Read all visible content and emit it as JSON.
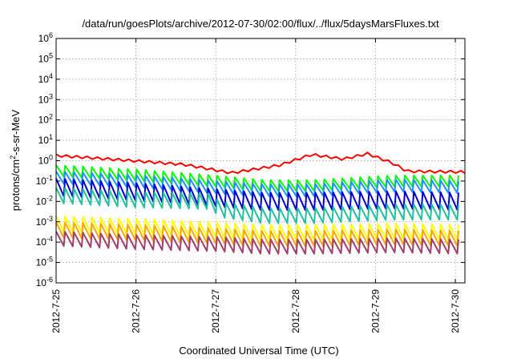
{
  "chart_data": {
    "type": "line",
    "title": "/data/run/goesPlots/archive/2012-07-30/02:00/flux/../flux/5daysMarsFluxes.txt",
    "xlabel": "Coordinated Universal Time (UTC)",
    "ylabel": "protons/cm²-s-sr-MeV",
    "ylabel_parts": {
      "base": "protons/cm",
      "sup": "2",
      "rest": "-s-sr-MeV"
    },
    "yscale": "log",
    "ylim_exp": [
      -6,
      6
    ],
    "yticks": [
      {
        "base": "10",
        "exp": "-6"
      },
      {
        "base": "10",
        "exp": "-5"
      },
      {
        "base": "10",
        "exp": "-4"
      },
      {
        "base": "10",
        "exp": "-3"
      },
      {
        "base": "10",
        "exp": "-2"
      },
      {
        "base": "10",
        "exp": "-1"
      },
      {
        "base": "10",
        "exp": "0"
      },
      {
        "base": "10",
        "exp": "1"
      },
      {
        "base": "10",
        "exp": "2"
      },
      {
        "base": "10",
        "exp": "3"
      },
      {
        "base": "10",
        "exp": "4"
      },
      {
        "base": "10",
        "exp": "5"
      },
      {
        "base": "10",
        "exp": "6"
      }
    ],
    "xlim_days": [
      0,
      5.12
    ],
    "xticks": [
      {
        "day": 0,
        "label": "2012-7-25"
      },
      {
        "day": 1,
        "label": "2012-7-26"
      },
      {
        "day": 2,
        "label": "2012-7-27"
      },
      {
        "day": 3,
        "label": "2012-7-28"
      },
      {
        "day": 4,
        "label": "2012-7-29"
      },
      {
        "day": 5,
        "label": "2012-7-30"
      }
    ],
    "grid": true,
    "legend": "none",
    "series": [
      {
        "color": "#ff0000",
        "sawtooth": false,
        "amplitude_decades": 0.12,
        "trend": [
          [
            0,
            1.8
          ],
          [
            0.8,
            1.1
          ],
          [
            1.6,
            0.65
          ],
          [
            2.2,
            0.25
          ],
          [
            2.6,
            0.45
          ],
          [
            2.8,
            0.6
          ],
          [
            3.2,
            2.0
          ],
          [
            3.6,
            1.2
          ],
          [
            3.9,
            2.2
          ],
          [
            4.2,
            0.8
          ],
          [
            4.4,
            0.3
          ],
          [
            5.12,
            0.28
          ]
        ]
      },
      {
        "color": "#00ff00",
        "sawtooth": true,
        "amplitude_decades": 0.55,
        "trend": [
          [
            0,
            0.32
          ],
          [
            1.0,
            0.2
          ],
          [
            2.0,
            0.1
          ],
          [
            2.6,
            0.06
          ],
          [
            3.2,
            0.06
          ],
          [
            4.2,
            0.1
          ],
          [
            5.12,
            0.1
          ]
        ]
      },
      {
        "color": "#1e90ff",
        "sawtooth": true,
        "amplitude_decades": 0.6,
        "trend": [
          [
            0,
            0.15
          ],
          [
            1.0,
            0.1
          ],
          [
            2.0,
            0.05
          ],
          [
            2.6,
            0.035
          ],
          [
            3.2,
            0.035
          ],
          [
            4.2,
            0.06
          ],
          [
            5.12,
            0.05
          ]
        ]
      },
      {
        "color": "#0000cd",
        "sawtooth": true,
        "amplitude_decades": 0.85,
        "trend": [
          [
            0,
            0.05
          ],
          [
            1.0,
            0.03
          ],
          [
            2.0,
            0.015
          ],
          [
            2.6,
            0.01
          ],
          [
            3.2,
            0.01
          ],
          [
            4.2,
            0.012
          ],
          [
            5.12,
            0.01
          ]
        ]
      },
      {
        "color": "#20c0a0",
        "sawtooth": true,
        "amplitude_decades": 0.75,
        "trend": [
          [
            0,
            0.02
          ],
          [
            1.0,
            0.012
          ],
          [
            1.95,
            0.01
          ],
          [
            2.05,
            0.004
          ],
          [
            2.6,
            0.002
          ],
          [
            3.2,
            0.002
          ],
          [
            4.2,
            0.003
          ],
          [
            5.12,
            0.003
          ]
        ]
      },
      {
        "color": "#ffff00",
        "sawtooth": true,
        "amplitude_decades": 0.75,
        "trend": [
          [
            0,
            0.0008
          ],
          [
            1.0,
            0.0006
          ],
          [
            2.0,
            0.0004
          ],
          [
            2.6,
            0.0003
          ],
          [
            3.2,
            0.0003
          ],
          [
            4.2,
            0.00035
          ],
          [
            5.12,
            0.0003
          ]
        ]
      },
      {
        "color": "#ffa500",
        "sawtooth": true,
        "amplitude_decades": 0.75,
        "trend": [
          [
            0,
            0.0004
          ],
          [
            1.0,
            0.0003
          ],
          [
            2.0,
            0.0002
          ],
          [
            2.6,
            0.00015
          ],
          [
            3.2,
            0.00015
          ],
          [
            4.2,
            0.00018
          ],
          [
            5.12,
            0.00015
          ]
        ]
      },
      {
        "color": "#a0406a",
        "sawtooth": true,
        "amplitude_decades": 0.7,
        "trend": [
          [
            0,
            0.00015
          ],
          [
            1.0,
            0.0001
          ],
          [
            2.0,
            8e-05
          ],
          [
            2.6,
            6e-05
          ],
          [
            3.2,
            6e-05
          ],
          [
            4.2,
            7e-05
          ],
          [
            5.12,
            6e-05
          ]
        ]
      }
    ]
  }
}
